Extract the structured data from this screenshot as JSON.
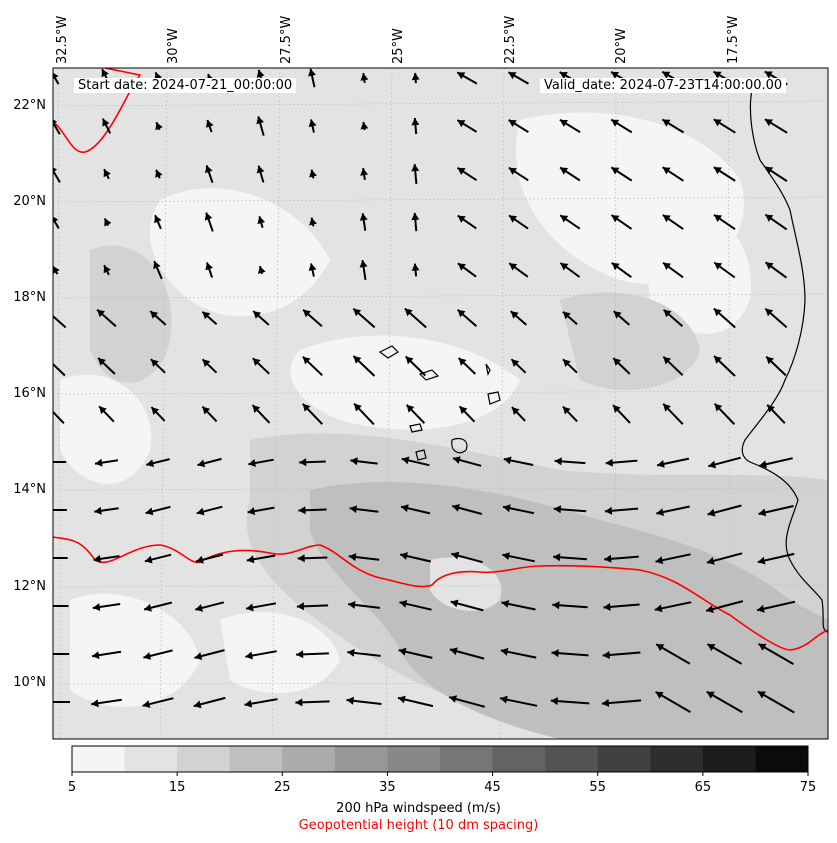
{
  "map": {
    "start_label": "Start date: 2024-07-21_00:00:00",
    "valid_label": "Valid_date: 2024-07-23T14:00:00.00",
    "lon_labels": [
      "32.5°W",
      "30°W",
      "27.5°W",
      "25°W",
      "22.5°W",
      "20°W",
      "17.5°W"
    ],
    "lat_labels": [
      "22°N",
      "20°N",
      "18°N",
      "16°N",
      "14°N",
      "12°N",
      "10°N"
    ],
    "contour_color": "#ff0000",
    "vector_color": "#000000"
  },
  "colorbar": {
    "ticks": [
      "5",
      "15",
      "25",
      "35",
      "45",
      "55",
      "65",
      "75"
    ],
    "levels": [
      5,
      10,
      15,
      20,
      25,
      30,
      35,
      40,
      45,
      50,
      55,
      60,
      65,
      70,
      75
    ],
    "colors": [
      "#f5f5f5",
      "#e3e3e3",
      "#d2d2d2",
      "#bfbfbf",
      "#ababab",
      "#989898",
      "#888888",
      "#767676",
      "#636363",
      "#545454",
      "#414141",
      "#2e2e2e",
      "#1c1c1c",
      "#0b0b0b"
    ],
    "label": "200 hPa windspeed (m/s)",
    "sublabel": "Geopotential height (10 dm spacing)"
  }
}
